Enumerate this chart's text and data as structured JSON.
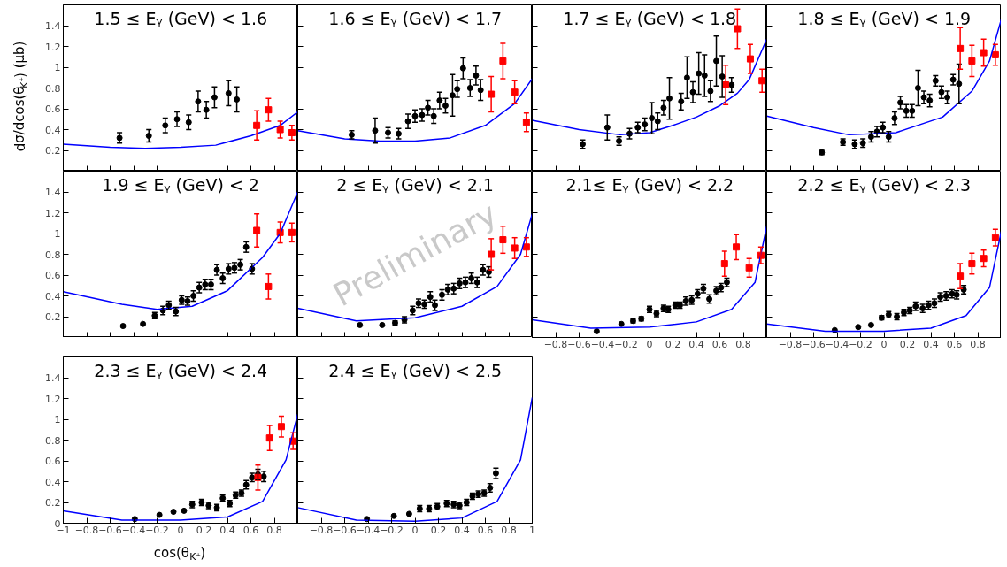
{
  "chart_data": [
    {
      "type": "scatter",
      "title": "1.5 ≤ Eᵧ (GeV) < 1.6",
      "ylabel": "dσ/dcos(θ$_{K⁺}$) (μb)",
      "xlim": [
        -1,
        1
      ],
      "ylim": [
        0,
        1.6
      ],
      "xticks": [
        -1,
        -0.8,
        -0.6,
        -0.4,
        -0.2,
        0,
        0.2,
        0.4,
        0.6,
        0.8,
        1
      ],
      "yticks": [
        0.2,
        0.4,
        0.6,
        0.8,
        1,
        1.2,
        1.4
      ],
      "tick_labels": "y",
      "series": [
        {
          "color": "#000000",
          "marker": "circle",
          "x": [
            -0.52,
            -0.27,
            -0.13,
            -0.03,
            0.07,
            0.15,
            0.22,
            0.29,
            0.41,
            0.48
          ],
          "values": [
            0.32,
            0.34,
            0.44,
            0.5,
            0.47,
            0.67,
            0.59,
            0.71,
            0.75,
            0.69
          ],
          "errors": [
            0.05,
            0.06,
            0.07,
            0.07,
            0.07,
            0.1,
            0.08,
            0.1,
            0.12,
            0.12
          ]
        },
        {
          "color": "#ff0000",
          "marker": "square",
          "x": [
            0.65,
            0.75,
            0.85,
            0.95
          ],
          "values": [
            0.44,
            0.59,
            0.4,
            0.37
          ],
          "errors": [
            0.14,
            0.11,
            0.08,
            0.07
          ]
        },
        {
          "type": "line",
          "color": "#0000ff",
          "x": [
            -1,
            -0.6,
            -0.3,
            0,
            0.3,
            0.6,
            0.85,
            1
          ],
          "values": [
            0.26,
            0.23,
            0.22,
            0.23,
            0.25,
            0.34,
            0.44,
            0.57
          ]
        }
      ]
    },
    {
      "type": "scatter",
      "title": "1.6 ≤ Eᵧ (GeV) < 1.7",
      "xlim": [
        -1,
        1
      ],
      "ylim": [
        0,
        1.6
      ],
      "xticks": [
        -1,
        -0.8,
        -0.6,
        -0.4,
        -0.2,
        0,
        0.2,
        0.4,
        0.6,
        0.8,
        1
      ],
      "yticks": [
        0.2,
        0.4,
        0.6,
        0.8,
        1,
        1.2,
        1.4
      ],
      "tick_labels": false,
      "series": [
        {
          "color": "#000000",
          "marker": "circle",
          "x": [
            -0.54,
            -0.34,
            -0.23,
            -0.14,
            -0.06,
            0,
            0.06,
            0.11,
            0.16,
            0.21,
            0.26,
            0.32,
            0.36,
            0.41,
            0.47,
            0.52,
            0.56
          ],
          "values": [
            0.35,
            0.39,
            0.37,
            0.36,
            0.48,
            0.53,
            0.54,
            0.61,
            0.53,
            0.68,
            0.63,
            0.73,
            0.79,
            0.99,
            0.8,
            0.92,
            0.78
          ],
          "errors": [
            0.04,
            0.12,
            0.05,
            0.05,
            0.07,
            0.06,
            0.06,
            0.07,
            0.07,
            0.08,
            0.07,
            0.2,
            0.08,
            0.1,
            0.08,
            0.09,
            0.1
          ]
        },
        {
          "color": "#ff0000",
          "marker": "square",
          "x": [
            0.65,
            0.75,
            0.85,
            0.95
          ],
          "values": [
            0.74,
            1.06,
            0.76,
            0.47
          ],
          "errors": [
            0.17,
            0.17,
            0.11,
            0.09
          ]
        },
        {
          "type": "line",
          "color": "#0000ff",
          "x": [
            -1,
            -0.6,
            -0.3,
            0,
            0.3,
            0.6,
            0.85,
            1
          ],
          "values": [
            0.39,
            0.31,
            0.29,
            0.29,
            0.32,
            0.44,
            0.65,
            0.89
          ]
        }
      ]
    },
    {
      "type": "scatter",
      "title": "1.7 ≤ Eᵧ (GeV) < 1.8",
      "xlim": [
        -1,
        1
      ],
      "ylim": [
        0,
        1.6
      ],
      "xticks": [
        -1,
        -0.8,
        -0.6,
        -0.4,
        -0.2,
        0,
        0.2,
        0.4,
        0.6,
        0.8,
        1
      ],
      "yticks": [
        0.2,
        0.4,
        0.6,
        0.8,
        1,
        1.2,
        1.4
      ],
      "tick_labels": false,
      "series": [
        {
          "color": "#000000",
          "marker": "circle",
          "x": [
            -0.57,
            -0.36,
            -0.26,
            -0.17,
            -0.1,
            -0.04,
            0.02,
            0.07,
            0.12,
            0.17,
            0.27,
            0.32,
            0.37,
            0.42,
            0.47,
            0.52,
            0.57,
            0.62,
            0.7
          ],
          "values": [
            0.26,
            0.42,
            0.29,
            0.36,
            0.42,
            0.45,
            0.51,
            0.48,
            0.61,
            0.7,
            0.67,
            0.9,
            0.76,
            0.94,
            0.92,
            0.77,
            1.06,
            0.91,
            0.83
          ],
          "errors": [
            0.04,
            0.12,
            0.04,
            0.05,
            0.05,
            0.06,
            0.15,
            0.08,
            0.07,
            0.2,
            0.08,
            0.2,
            0.1,
            0.2,
            0.2,
            0.1,
            0.24,
            0.2,
            0.07
          ]
        },
        {
          "color": "#ff0000",
          "marker": "square",
          "x": [
            0.65,
            0.75,
            0.86,
            0.96
          ],
          "values": [
            0.83,
            1.37,
            1.08,
            0.87
          ],
          "errors": [
            0.19,
            0.19,
            0.14,
            0.11
          ]
        },
        {
          "type": "line",
          "color": "#0000ff",
          "x": [
            -1,
            -0.6,
            -0.25,
            0,
            0.2,
            0.4,
            0.6,
            0.75,
            0.85,
            1
          ],
          "values": [
            0.49,
            0.4,
            0.35,
            0.37,
            0.44,
            0.52,
            0.63,
            0.75,
            0.88,
            1.27
          ]
        }
      ]
    },
    {
      "type": "scatter",
      "title": "1.8 ≤ Eᵧ (GeV) < 1.9",
      "xlim": [
        -1,
        1
      ],
      "ylim": [
        0,
        1.6
      ],
      "xticks": [
        -1,
        -0.8,
        -0.6,
        -0.4,
        -0.2,
        0,
        0.2,
        0.4,
        0.6,
        0.8,
        1
      ],
      "yticks": [
        0.2,
        0.4,
        0.6,
        0.8,
        1,
        1.2,
        1.4
      ],
      "tick_labels": false,
      "series": [
        {
          "color": "#000000",
          "marker": "circle",
          "x": [
            -0.53,
            -0.35,
            -0.25,
            -0.18,
            -0.11,
            -0.06,
            -0.01,
            0.04,
            0.09,
            0.14,
            0.19,
            0.24,
            0.29,
            0.34,
            0.39,
            0.44,
            0.49,
            0.54,
            0.59,
            0.64
          ],
          "values": [
            0.18,
            0.28,
            0.26,
            0.27,
            0.33,
            0.38,
            0.42,
            0.33,
            0.51,
            0.66,
            0.58,
            0.58,
            0.8,
            0.71,
            0.68,
            0.87,
            0.76,
            0.71,
            0.88,
            0.84
          ],
          "errors": [
            0.02,
            0.03,
            0.04,
            0.04,
            0.05,
            0.05,
            0.05,
            0.05,
            0.06,
            0.06,
            0.06,
            0.06,
            0.17,
            0.06,
            0.06,
            0.05,
            0.06,
            0.06,
            0.05,
            0.19
          ]
        },
        {
          "color": "#ff0000",
          "marker": "square",
          "x": [
            0.65,
            0.75,
            0.85,
            0.95
          ],
          "values": [
            1.18,
            1.06,
            1.14,
            1.12
          ],
          "errors": [
            0.2,
            0.15,
            0.13,
            0.1
          ]
        },
        {
          "type": "line",
          "color": "#0000ff",
          "x": [
            -1,
            -0.6,
            -0.3,
            0.1,
            0.5,
            0.75,
            0.9,
            1
          ],
          "values": [
            0.53,
            0.42,
            0.35,
            0.37,
            0.52,
            0.77,
            1.06,
            1.46
          ]
        }
      ]
    },
    {
      "type": "scatter",
      "title": "1.9 ≤ Eᵧ (GeV) < 2",
      "xlim": [
        -1,
        1
      ],
      "ylim": [
        0,
        1.6
      ],
      "xticks": [
        -1,
        -0.8,
        -0.6,
        -0.4,
        -0.2,
        0,
        0.2,
        0.4,
        0.6,
        0.8,
        1
      ],
      "yticks": [
        0.2,
        0.4,
        0.6,
        0.8,
        1,
        1.2,
        1.4
      ],
      "tick_labels": "y",
      "series": [
        {
          "color": "#000000",
          "marker": "circle",
          "x": [
            -0.49,
            -0.32,
            -0.22,
            -0.15,
            -0.1,
            -0.04,
            0.01,
            0.06,
            0.11,
            0.16,
            0.21,
            0.26,
            0.31,
            0.36,
            0.41,
            0.46,
            0.51,
            0.56,
            0.61
          ],
          "values": [
            0.11,
            0.13,
            0.21,
            0.26,
            0.31,
            0.25,
            0.36,
            0.35,
            0.4,
            0.48,
            0.51,
            0.51,
            0.65,
            0.57,
            0.66,
            0.67,
            0.7,
            0.87,
            0.66
          ],
          "errors": [
            null,
            null,
            0.03,
            0.04,
            0.04,
            0.04,
            0.04,
            0.04,
            0.05,
            0.05,
            0.05,
            0.05,
            0.05,
            0.05,
            0.05,
            0.05,
            0.05,
            0.05,
            0.05
          ]
        },
        {
          "color": "#ff0000",
          "marker": "square",
          "x": [
            0.65,
            0.75,
            0.85,
            0.95
          ],
          "values": [
            1.03,
            0.49,
            1.01,
            1.01
          ],
          "errors": [
            0.16,
            0.12,
            0.1,
            0.09
          ]
        },
        {
          "type": "line",
          "color": "#0000ff",
          "x": [
            -1,
            -0.5,
            -0.2,
            0.1,
            0.4,
            0.7,
            0.85,
            1
          ],
          "values": [
            0.44,
            0.32,
            0.27,
            0.3,
            0.45,
            0.77,
            1.0,
            1.4
          ]
        }
      ]
    },
    {
      "type": "scatter",
      "title": "2 ≤ Eᵧ (GeV) < 2.1",
      "annotations": [
        "Preliminary"
      ],
      "xlim": [
        -1,
        1
      ],
      "ylim": [
        0,
        1.6
      ],
      "xticks": [
        -1,
        -0.8,
        -0.6,
        -0.4,
        -0.2,
        0,
        0.2,
        0.4,
        0.6,
        0.8,
        1
      ],
      "yticks": [
        0.2,
        0.4,
        0.6,
        0.8,
        1,
        1.2,
        1.4
      ],
      "tick_labels": false,
      "series": [
        {
          "color": "#000000",
          "marker": "circle",
          "x": [
            -0.47,
            -0.28,
            -0.17,
            -0.09,
            -0.02,
            0.03,
            0.08,
            0.13,
            0.17,
            0.23,
            0.28,
            0.33,
            0.38,
            0.43,
            0.48,
            0.53,
            0.58,
            0.63
          ],
          "values": [
            0.12,
            0.12,
            0.14,
            0.17,
            0.26,
            0.33,
            0.32,
            0.39,
            0.31,
            0.41,
            0.46,
            0.47,
            0.52,
            0.53,
            0.57,
            0.53,
            0.65,
            0.63
          ],
          "errors": [
            null,
            null,
            0.02,
            0.03,
            0.04,
            0.04,
            0.04,
            0.05,
            0.05,
            0.05,
            0.05,
            0.05,
            0.05,
            0.05,
            0.05,
            0.05,
            0.05,
            0.05
          ]
        },
        {
          "color": "#ff0000",
          "marker": "square",
          "x": [
            0.65,
            0.75,
            0.85,
            0.95
          ],
          "values": [
            0.8,
            0.94,
            0.86,
            0.87
          ],
          "errors": [
            0.15,
            0.13,
            0.1,
            0.09
          ]
        },
        {
          "type": "line",
          "color": "#0000ff",
          "x": [
            -1,
            -0.5,
            0,
            0.4,
            0.7,
            0.9,
            1
          ],
          "values": [
            0.28,
            0.16,
            0.19,
            0.3,
            0.49,
            0.8,
            1.19
          ]
        }
      ]
    },
    {
      "type": "scatter",
      "title": "2.1≤ Eᵧ (GeV) < 2.2",
      "xlim": [
        -1,
        1
      ],
      "ylim": [
        0,
        1.6
      ],
      "xticks": [
        -0.8,
        -0.6,
        -0.4,
        -0.2,
        0,
        0.2,
        0.4,
        0.6,
        0.8
      ],
      "yticks": [
        0.2,
        0.4,
        0.6,
        0.8,
        1,
        1.2,
        1.4
      ],
      "tick_labels": "x",
      "series": [
        {
          "color": "#000000",
          "marker": "circle",
          "x": [
            -0.45,
            -0.24,
            -0.14,
            -0.07,
            0,
            0.06,
            0.12,
            0.16,
            0.22,
            0.26,
            0.31,
            0.36,
            0.41,
            0.46,
            0.51,
            0.57,
            0.61,
            0.66
          ],
          "values": [
            0.06,
            0.13,
            0.16,
            0.18,
            0.27,
            0.23,
            0.28,
            0.27,
            0.31,
            0.31,
            0.35,
            0.36,
            0.42,
            0.47,
            0.37,
            0.45,
            0.48,
            0.53
          ],
          "errors": [
            null,
            null,
            0.02,
            0.02,
            0.03,
            0.03,
            0.03,
            0.03,
            0.03,
            0.03,
            0.04,
            0.04,
            0.04,
            0.04,
            0.04,
            0.04,
            0.04,
            0.04
          ]
        },
        {
          "color": "#ff0000",
          "marker": "square",
          "x": [
            0.64,
            0.74,
            0.85,
            0.95
          ],
          "values": [
            0.71,
            0.87,
            0.67,
            0.79
          ],
          "errors": [
            0.12,
            0.12,
            0.09,
            0.08
          ]
        },
        {
          "type": "line",
          "color": "#0000ff",
          "x": [
            -1,
            -0.5,
            0,
            0.4,
            0.7,
            0.9,
            1
          ],
          "values": [
            0.17,
            0.09,
            0.1,
            0.15,
            0.27,
            0.53,
            1.07
          ]
        }
      ]
    },
    {
      "type": "scatter",
      "title": "2.2 ≤ Eᵧ (GeV) < 2.3",
      "xlim": [
        -1,
        1
      ],
      "ylim": [
        0,
        1.6
      ],
      "xticks": [
        -0.8,
        -0.6,
        -0.4,
        -0.2,
        0,
        0.2,
        0.4,
        0.6,
        0.8
      ],
      "yticks": [
        0.2,
        0.4,
        0.6,
        0.8,
        1,
        1.2,
        1.4
      ],
      "tick_labels": "x",
      "series": [
        {
          "color": "#000000",
          "marker": "circle",
          "x": [
            -0.42,
            -0.22,
            -0.11,
            -0.02,
            0.04,
            0.11,
            0.17,
            0.22,
            0.27,
            0.33,
            0.38,
            0.43,
            0.48,
            0.53,
            0.58,
            0.62,
            0.68
          ],
          "values": [
            0.07,
            0.1,
            0.12,
            0.19,
            0.22,
            0.2,
            0.24,
            0.26,
            0.3,
            0.28,
            0.31,
            0.33,
            0.39,
            0.4,
            0.42,
            0.41,
            0.46
          ],
          "errors": [
            null,
            null,
            null,
            0.02,
            0.03,
            0.03,
            0.03,
            0.03,
            0.04,
            0.04,
            0.04,
            0.04,
            0.04,
            0.04,
            0.04,
            0.04,
            0.04
          ]
        },
        {
          "color": "#ff0000",
          "marker": "square",
          "x": [
            0.65,
            0.75,
            0.85,
            0.95
          ],
          "values": [
            0.59,
            0.71,
            0.76,
            0.96
          ],
          "errors": [
            0.12,
            0.1,
            0.08,
            0.08
          ]
        },
        {
          "type": "line",
          "color": "#0000ff",
          "x": [
            -1,
            -0.5,
            0,
            0.4,
            0.7,
            0.9,
            1
          ],
          "values": [
            0.13,
            0.06,
            0.06,
            0.09,
            0.21,
            0.48,
            1.02
          ]
        }
      ]
    },
    {
      "type": "scatter",
      "title": "2.3 ≤ Eᵧ (GeV) < 2.4",
      "xlabel": "cos(θ$_{K⁺}$)",
      "xlim": [
        -1,
        1
      ],
      "ylim": [
        0,
        1.6
      ],
      "xticks": [
        -1,
        -0.8,
        -0.6,
        -0.4,
        -0.2,
        0,
        0.2,
        0.4,
        0.6,
        0.8
      ],
      "yticks": [
        0,
        0.2,
        0.4,
        0.6,
        0.8,
        1,
        1.2,
        1.4
      ],
      "series": [
        {
          "color": "#000000",
          "marker": "circle",
          "x": [
            -0.39,
            -0.18,
            -0.06,
            0.03,
            0.1,
            0.18,
            0.24,
            0.31,
            0.36,
            0.42,
            0.47,
            0.52,
            0.56,
            0.61,
            0.66,
            0.71
          ],
          "values": [
            0.04,
            0.08,
            0.11,
            0.12,
            0.18,
            0.2,
            0.17,
            0.15,
            0.24,
            0.19,
            0.27,
            0.29,
            0.37,
            0.44,
            0.47,
            0.45
          ],
          "errors": [
            null,
            null,
            null,
            null,
            0.03,
            0.03,
            0.03,
            0.03,
            0.03,
            0.03,
            0.03,
            0.03,
            0.04,
            0.04,
            0.05,
            0.05
          ]
        },
        {
          "color": "#ff0000",
          "marker": "square",
          "x": [
            0.66,
            0.76,
            0.86,
            0.96
          ],
          "values": [
            0.44,
            0.82,
            0.93,
            0.79
          ],
          "errors": [
            0.12,
            0.12,
            0.1,
            0.08
          ]
        },
        {
          "type": "line",
          "color": "#0000ff",
          "x": [
            -1,
            -0.5,
            0,
            0.4,
            0.7,
            0.9,
            1
          ],
          "values": [
            0.12,
            0.03,
            0.03,
            0.06,
            0.21,
            0.61,
            1.05
          ]
        }
      ]
    },
    {
      "type": "scatter",
      "title": "2.4 ≤ Eᵧ (GeV) < 2.5",
      "xlim": [
        -1,
        1
      ],
      "ylim": [
        0,
        1.6
      ],
      "xticks": [
        -0.8,
        -0.6,
        -0.4,
        -0.2,
        0,
        0.2,
        0.4,
        0.6,
        0.8,
        1
      ],
      "yticks": [
        0,
        0.2,
        0.4,
        0.6,
        0.8,
        1,
        1.2,
        1.4
      ],
      "tick_labels": "x",
      "series": [
        {
          "color": "#000000",
          "marker": "circle",
          "x": [
            -0.41,
            -0.18,
            -0.05,
            0.04,
            0.12,
            0.19,
            0.27,
            0.33,
            0.38,
            0.44,
            0.49,
            0.54,
            0.59,
            0.64,
            0.69
          ],
          "values": [
            0.04,
            0.07,
            0.09,
            0.14,
            0.14,
            0.16,
            0.19,
            0.18,
            0.17,
            0.2,
            0.26,
            0.28,
            0.29,
            0.34,
            0.48
          ],
          "errors": [
            null,
            null,
            null,
            0.03,
            0.03,
            0.03,
            0.03,
            0.03,
            0.03,
            0.03,
            0.03,
            0.03,
            0.03,
            0.04,
            0.05
          ]
        },
        {
          "type": "line",
          "color": "#0000ff",
          "x": [
            -1,
            -0.5,
            0,
            0.4,
            0.7,
            0.9,
            1
          ],
          "values": [
            0.15,
            0.03,
            0.02,
            0.05,
            0.21,
            0.61,
            1.21
          ]
        }
      ]
    }
  ]
}
